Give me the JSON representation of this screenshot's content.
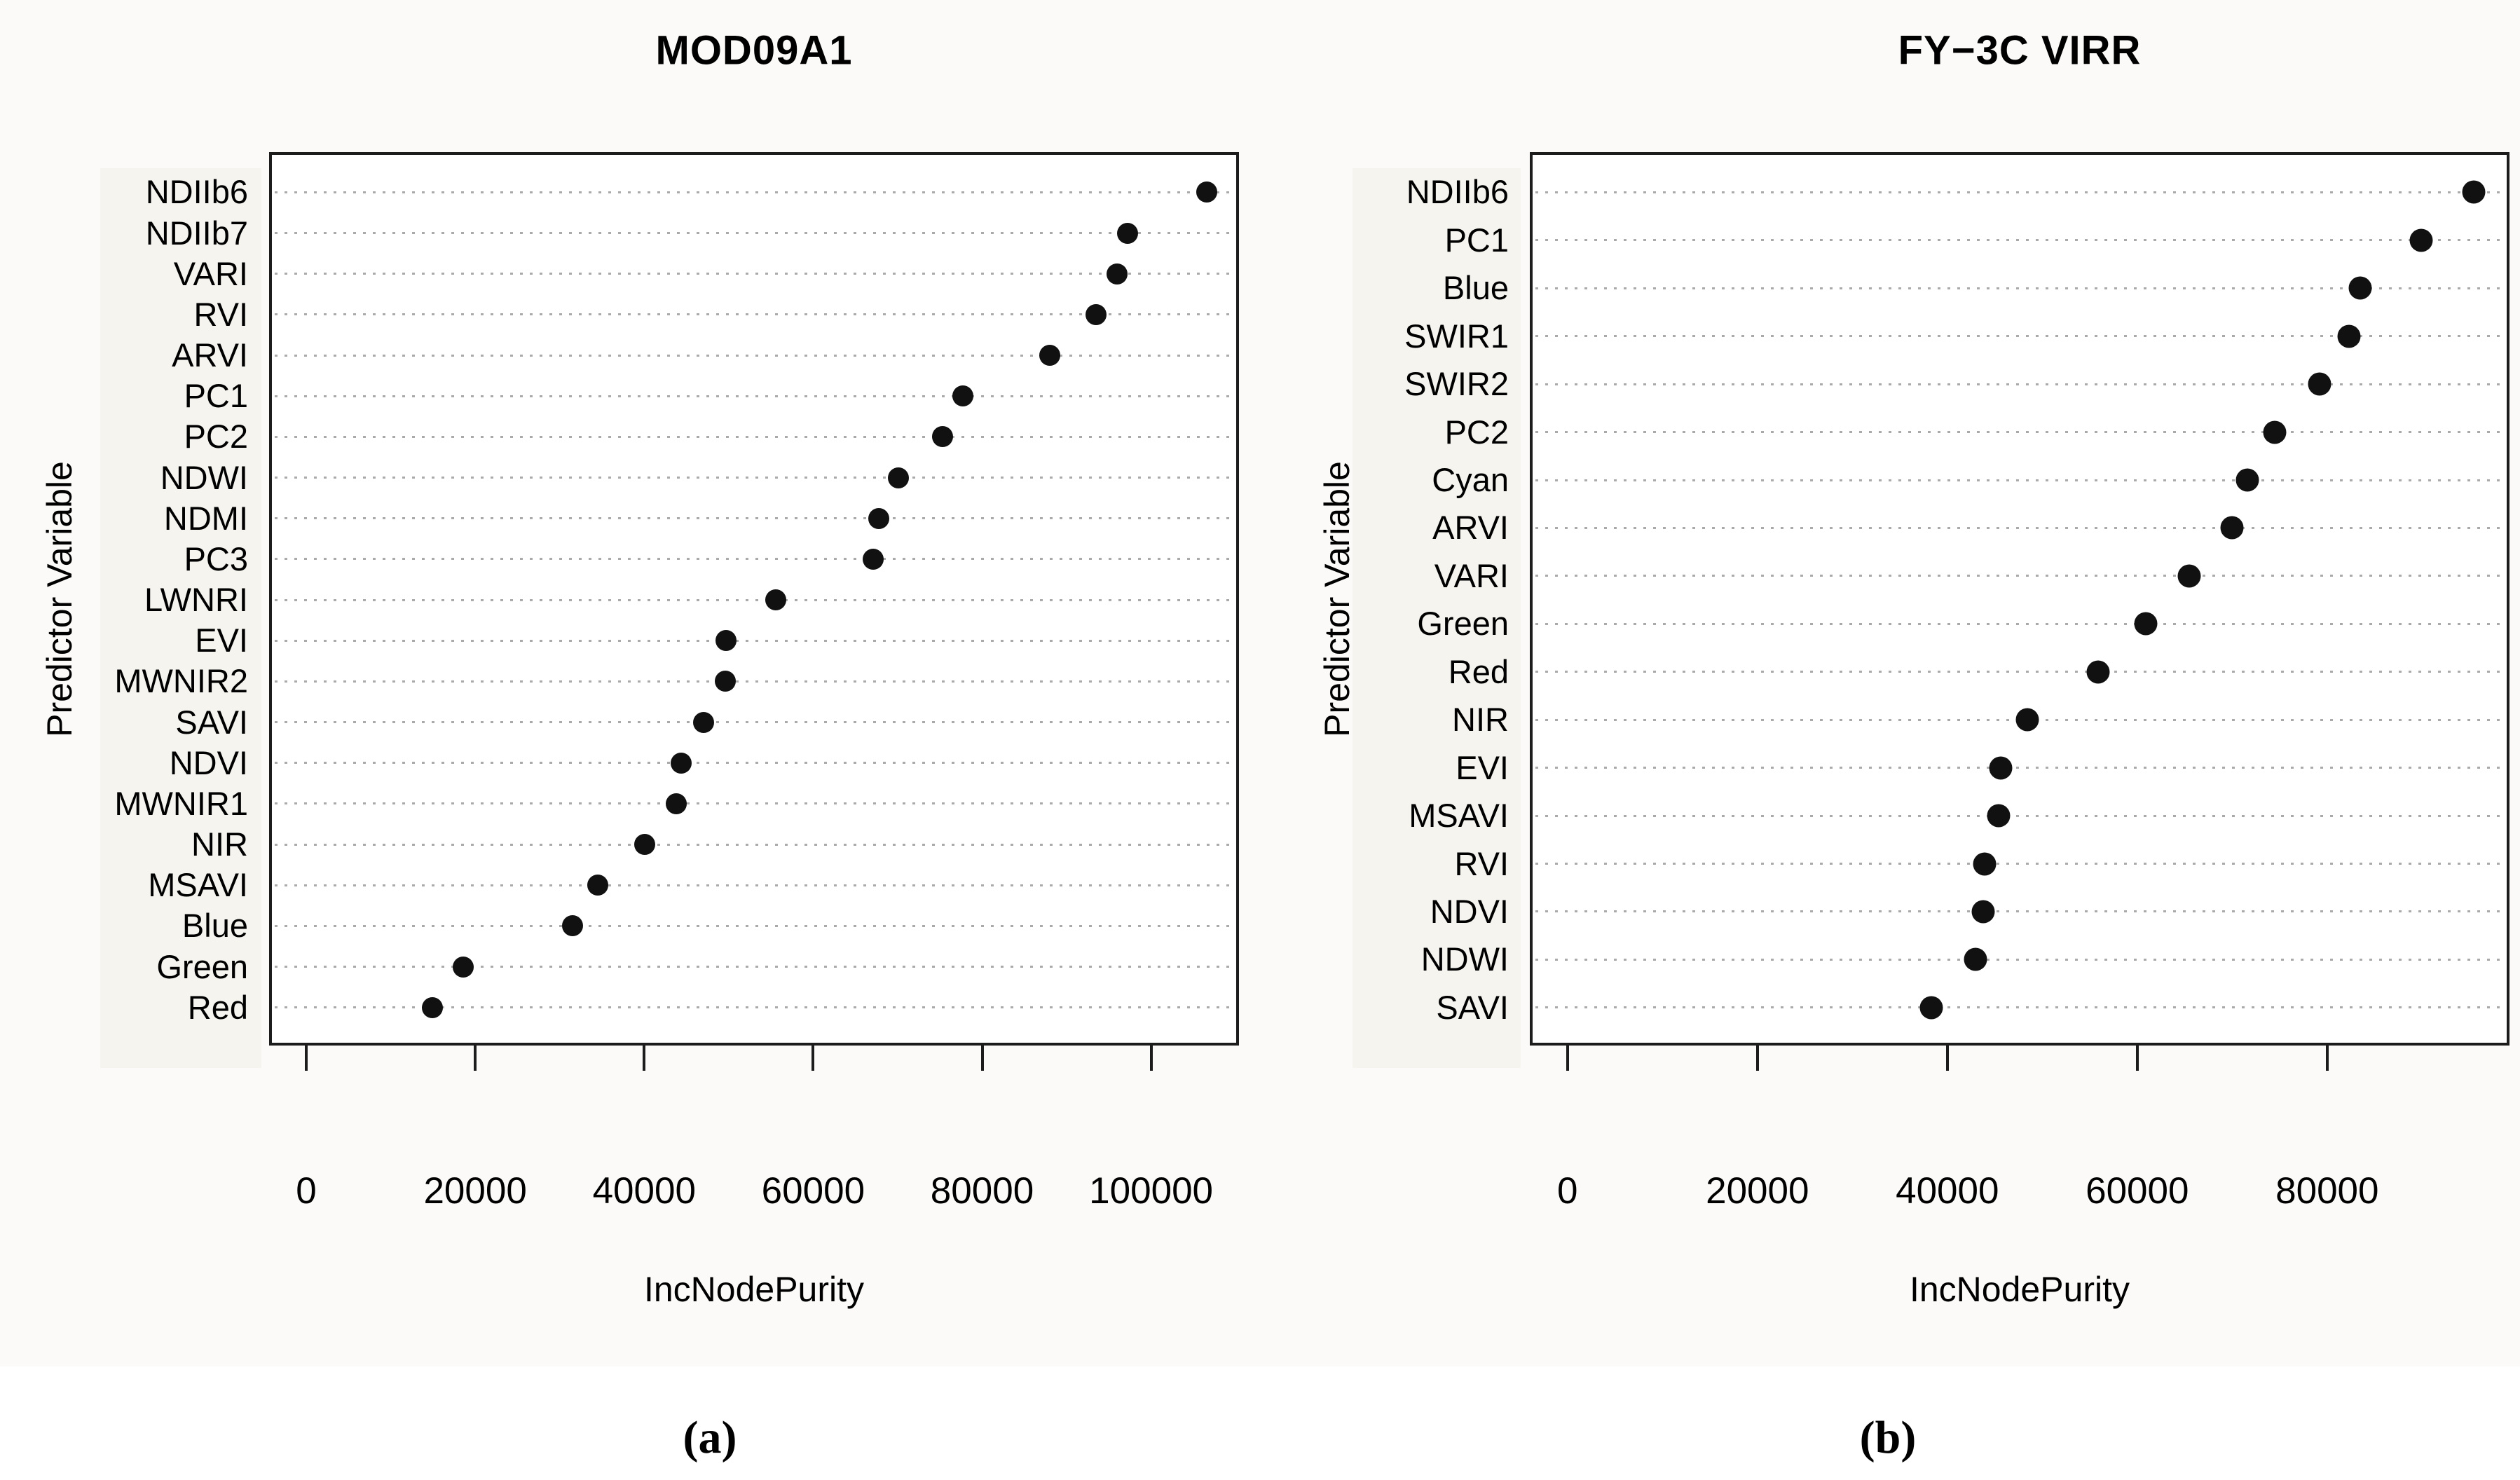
{
  "figure": {
    "background": "#fbfaf8",
    "panel_background": "#ffffff",
    "dot_color": "#111111",
    "grid_color": "#aaaaaa",
    "border_color": "#1c1c1c",
    "label_band_color": "#f5f4ef",
    "text_color": "#000000"
  },
  "chart_data": [
    {
      "type": "scatter",
      "title": "MOD09A1",
      "caption": "(a)",
      "xlabel": "IncNodePurity",
      "ylabel": "Predictor Variable",
      "grid": "horizontal-dotted",
      "legend": "none",
      "xlim": [
        -4400,
        110400
      ],
      "x_ticks": [
        0,
        20000,
        40000,
        60000,
        80000,
        100000
      ],
      "x_tick_labels": [
        "0",
        "20000",
        "40000",
        "60000",
        "80000",
        "100000"
      ],
      "categories": [
        "NDIIb6",
        "NDIIb7",
        "VARI",
        "RVI",
        "ARVI",
        "PC1",
        "PC2",
        "NDWI",
        "NDMI",
        "PC3",
        "LWNRI",
        "EVI",
        "MWNIR2",
        "SAVI",
        "NDVI",
        "MWNIR1",
        "NIR",
        "MSAVI",
        "Blue",
        "Green",
        "Red"
      ],
      "values": [
        106600,
        97200,
        96000,
        93500,
        88000,
        77700,
        75300,
        70100,
        67800,
        67100,
        55600,
        49700,
        49600,
        47000,
        44400,
        43800,
        40100,
        34500,
        31500,
        18600,
        14900
      ]
    },
    {
      "type": "scatter",
      "title": "FY−3C VIRR",
      "caption": "(b)",
      "xlabel": "IncNodePurity",
      "ylabel": "Predictor Variable",
      "grid": "horizontal-dotted",
      "legend": "none",
      "xlim": [
        -3970,
        99200
      ],
      "x_ticks": [
        0,
        20000,
        40000,
        60000,
        80000
      ],
      "x_tick_labels": [
        "0",
        "20000",
        "40000",
        "60000",
        "80000"
      ],
      "categories": [
        "NDIIb6",
        "PC1",
        "Blue",
        "SWIR1",
        "SWIR2",
        "PC2",
        "Cyan",
        "ARVI",
        "VARI",
        "Green",
        "Red",
        "NIR",
        "EVI",
        "MSAVI",
        "RVI",
        "NDVI",
        "NDWI",
        "SAVI"
      ],
      "values": [
        95400,
        89900,
        83500,
        82300,
        79200,
        74500,
        71600,
        70000,
        65500,
        60900,
        55900,
        48400,
        45600,
        45400,
        43900,
        43800,
        43000,
        38300
      ]
    }
  ]
}
